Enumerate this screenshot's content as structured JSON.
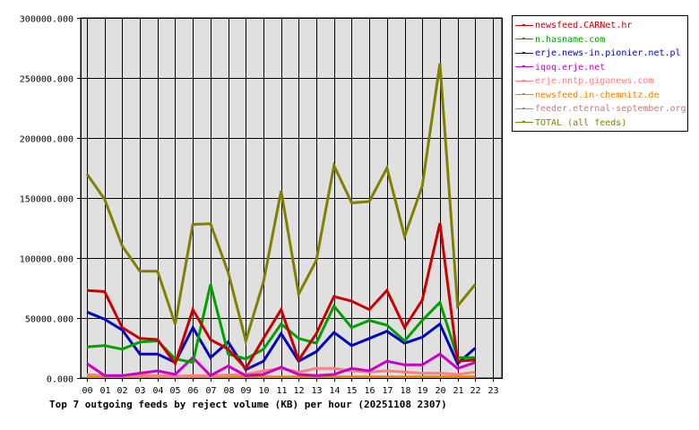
{
  "chart_data": {
    "type": "line",
    "title": "Top 7 outgoing feeds by reject volume (KB) per hour (20251108 2307)",
    "xlabel": "",
    "ylabel": "",
    "ylim": [
      0,
      300000
    ],
    "yticks": [
      "0.000",
      "50000.000",
      "100000.000",
      "150000.000",
      "200000.000",
      "250000.000",
      "300000.000"
    ],
    "ytick_values": [
      0,
      50000,
      100000,
      150000,
      200000,
      250000,
      300000
    ],
    "grid": true,
    "legend_position": "right",
    "categories": [
      "00",
      "01",
      "02",
      "03",
      "04",
      "05",
      "06",
      "07",
      "08",
      "09",
      "10",
      "11",
      "12",
      "13",
      "14",
      "15",
      "16",
      "17",
      "18",
      "19",
      "20",
      "21",
      "22",
      "23"
    ],
    "series": [
      {
        "name": "newsfeed.CARNet.hr",
        "color": "#c80000",
        "values": [
          73000,
          72000,
          42000,
          33000,
          32000,
          12000,
          57000,
          32000,
          24000,
          8000,
          33000,
          57000,
          15000,
          37000,
          68000,
          64000,
          57000,
          73000,
          42000,
          65000,
          129000,
          14000,
          15000
        ]
      },
      {
        "name": "n.hasname.com",
        "color": "#00a000",
        "values": [
          26000,
          27000,
          24000,
          30000,
          31000,
          16000,
          13000,
          78000,
          20000,
          16000,
          24000,
          45000,
          33000,
          29000,
          60000,
          42000,
          48000,
          44000,
          31000,
          48000,
          63000,
          17000,
          17000
        ]
      },
      {
        "name": "erje.news-in.pionier.net.pl",
        "color": "#0000c0",
        "values": [
          55000,
          49000,
          40000,
          20000,
          20000,
          13000,
          42000,
          17000,
          30000,
          7000,
          14000,
          37000,
          14000,
          22000,
          38000,
          27000,
          33000,
          39000,
          29000,
          34000,
          45000,
          12000,
          25000
        ]
      },
      {
        "name": "iqoq.erje.net",
        "color": "#c800c8",
        "values": [
          12000,
          2000,
          2000,
          4000,
          6000,
          3000,
          17000,
          2000,
          10000,
          2000,
          3000,
          9000,
          3000,
          2000,
          3000,
          8000,
          6000,
          14000,
          11000,
          11000,
          20000,
          8000,
          13000
        ]
      },
      {
        "name": "erje.nntp.giganews.com",
        "color": "#ff8080",
        "values": [
          3000,
          2000,
          2000,
          2000,
          2000,
          1500,
          2000,
          2000,
          2500,
          3000,
          6000,
          8000,
          5000,
          8000,
          8000,
          6000,
          5000,
          6000,
          5000,
          4000,
          4000,
          3000,
          5000
        ]
      },
      {
        "name": "newsfeed.in-chemnitz.de",
        "color": "#f08000",
        "values": [
          1500,
          1000,
          1000,
          1000,
          1000,
          1000,
          1000,
          1000,
          1000,
          1000,
          1000,
          1000,
          1000,
          1000,
          1000,
          1000,
          1000,
          1000,
          1000,
          1000,
          1000,
          1000,
          1000
        ]
      },
      {
        "name": "feeder.eternal-september.org",
        "color": "#c08080",
        "values": [
          500,
          500,
          500,
          500,
          500,
          500,
          500,
          500,
          500,
          500,
          500,
          500,
          500,
          500,
          500,
          500,
          500,
          500,
          500,
          500,
          500,
          500,
          500
        ]
      },
      {
        "name": "TOTAL (all feeds)",
        "color": "#808000",
        "values": [
          170000,
          149000,
          110000,
          89000,
          89000,
          45000,
          128000,
          128500,
          88000,
          31000,
          80000,
          156000,
          70000,
          98000,
          177000,
          146000,
          147000,
          175000,
          118000,
          160000,
          262000,
          60000,
          78000
        ]
      }
    ]
  },
  "caption": "Top 7 outgoing feeds by reject volume (KB) per hour (20251108 2307)",
  "legend": [
    {
      "label": "newsfeed.CARNet.hr",
      "color": "#c80000"
    },
    {
      "label": "n.hasname.com",
      "color": "#00a000"
    },
    {
      "label": "erje.news-in.pionier.net.pl",
      "color": "#0000c0"
    },
    {
      "label": "iqoq.erje.net",
      "color": "#c800c8"
    },
    {
      "label": "erje.nntp.giganews.com",
      "color": "#ff8080"
    },
    {
      "label": "newsfeed.in-chemnitz.de",
      "color": "#f08000"
    },
    {
      "label": "feeder.eternal-september.org",
      "color": "#c08080"
    },
    {
      "label": "TOTAL (all feeds)",
      "color": "#808000"
    }
  ],
  "colors": {
    "plot_background": "#e0e0e0",
    "grid": "#000000"
  }
}
